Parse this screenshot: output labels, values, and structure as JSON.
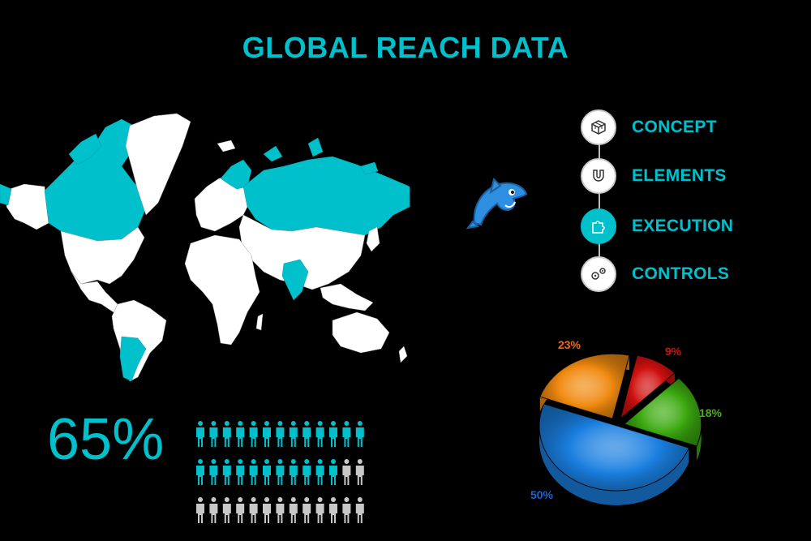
{
  "title": "GLOBAL REACH DATA",
  "colors": {
    "accent": "#00c0cc",
    "white": "#ffffff",
    "background": "#000000",
    "person_inactive": "#c8c8c8",
    "map_white": "#ffffff"
  },
  "map": {
    "highlighted_regions": [
      "Canada",
      "Greenland (NW)",
      "Alaska (W)",
      "Russia",
      "India",
      "Argentina",
      "Chile"
    ]
  },
  "mascot": {
    "icon": "dolphin-icon"
  },
  "steps": [
    {
      "label": "CONCEPT",
      "icon": "cube-grid-icon",
      "active": false
    },
    {
      "label": "ELEMENTS",
      "icon": "magnet-icon",
      "active": false
    },
    {
      "label": "EXECUTION",
      "icon": "puzzle-icon",
      "active": true
    },
    {
      "label": "CONTROLS",
      "icon": "gears-icon",
      "active": false
    }
  ],
  "big_stat": "65%",
  "people": {
    "rows": 3,
    "per_row": 13,
    "highlighted": 24
  },
  "chart_data": {
    "type": "pie",
    "slices": [
      {
        "label": "50%",
        "value": 50,
        "color": "#1a7fe0"
      },
      {
        "label": "23%",
        "value": 23,
        "color": "#f08a10"
      },
      {
        "label": "9%",
        "value": 9,
        "color": "#d01010"
      },
      {
        "label": "18%",
        "value": 18,
        "color": "#3caa10"
      }
    ],
    "label_colors": [
      "#1a66d0",
      "#f06a10",
      "#d01010",
      "#4cae14"
    ]
  }
}
